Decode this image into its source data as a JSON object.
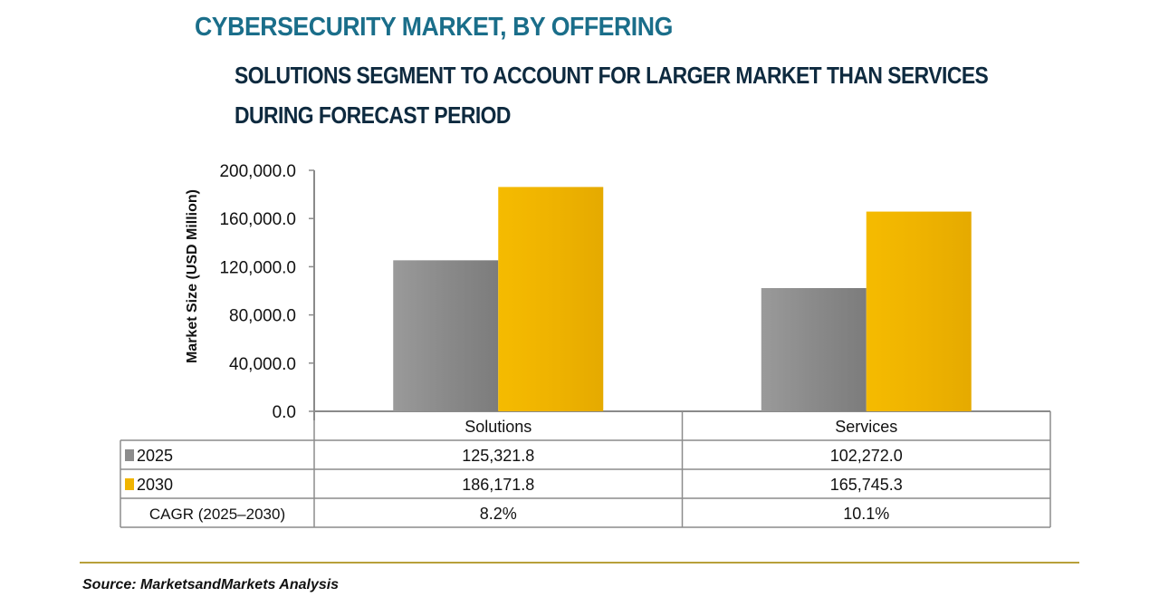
{
  "chart_data": {
    "type": "bar",
    "title": "CYBERSECURITY MARKET, BY OFFERING",
    "subtitle_lines": [
      "SOLUTIONS SEGMENT TO ACCOUNT FOR LARGER MARKET THAN SERVICES",
      "DURING FORECAST PERIOD"
    ],
    "xlabel": "",
    "ylabel": "Market Size (USD Million)",
    "ylim": [
      0,
      200000
    ],
    "yticks": [
      0,
      40000,
      80000,
      120000,
      160000,
      200000
    ],
    "ytick_labels": [
      "0.0",
      "40,000.0",
      "80,000.0",
      "120,000.0",
      "160,000.0",
      "200,000.0"
    ],
    "categories": [
      "Solutions",
      "Services"
    ],
    "series": [
      {
        "name": "2025",
        "color": "#8c8c8c",
        "values": [
          125321.8,
          102272.0
        ],
        "labels": [
          "125,321.8",
          "102,272.0"
        ]
      },
      {
        "name": "2030",
        "color": "#f0b400",
        "values": [
          186171.8,
          165745.3
        ],
        "labels": [
          "186,171.8",
          "165,745.3"
        ]
      }
    ],
    "table_extra_row": {
      "label": "CAGR (2025–2030)",
      "values": [
        "8.2%",
        "10.1%"
      ]
    },
    "grid": false,
    "legend": "data-table"
  },
  "source": "Source: MarketsandMarkets Analysis"
}
